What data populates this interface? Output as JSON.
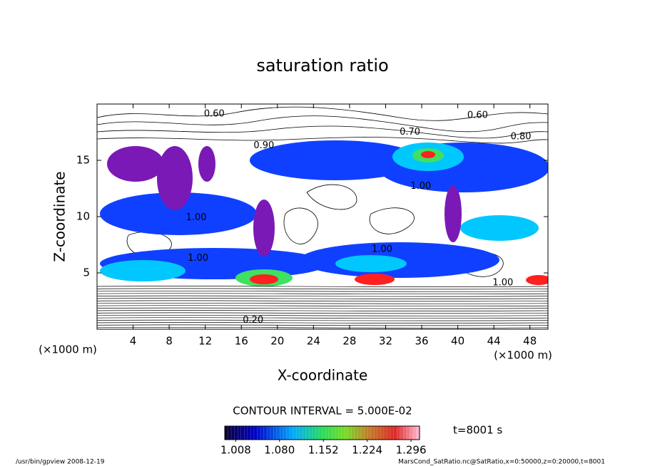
{
  "chart_data": {
    "type": "contour",
    "title": "saturation ratio",
    "x_label": "X-coordinate",
    "y_label": "Z-coordinate",
    "x_unit": "(×1000 m)",
    "y_unit": "(×1000 m)",
    "xlim": [
      0,
      50
    ],
    "ylim": [
      0,
      20
    ],
    "xticks": [
      4,
      8,
      12,
      16,
      20,
      24,
      28,
      32,
      36,
      40,
      44,
      48
    ],
    "yticks": [
      5,
      10,
      15
    ],
    "contour_labels": [
      {
        "text": "0.60",
        "x": 13,
        "y": 19.1
      },
      {
        "text": "0.60",
        "x": 42.2,
        "y": 19
      },
      {
        "text": "0.70",
        "x": 34.7,
        "y": 17.5
      },
      {
        "text": "0.80",
        "x": 47,
        "y": 17.1
      },
      {
        "text": "0.90",
        "x": 18.5,
        "y": 16.3
      },
      {
        "text": "1.00",
        "x": 35.9,
        "y": 12.7
      },
      {
        "text": "1.00",
        "x": 11,
        "y": 9.9
      },
      {
        "text": "1.00",
        "x": 11.2,
        "y": 6.3
      },
      {
        "text": "1.00",
        "x": 31.6,
        "y": 7.1
      },
      {
        "text": "1.00",
        "x": 45,
        "y": 4.1
      },
      {
        "text": "0.20",
        "x": 17.3,
        "y": 0.8
      }
    ],
    "contour_interval": "CONTOUR INTERVAL = 5.000E-02",
    "time_label": "t=8001 s",
    "colorbar": {
      "lim": [
        0.99,
        1.31
      ],
      "ticks": [
        1.008,
        {
          "value": 1.08,
          "label": "1.080"
        },
        1.152,
        1.224,
        1.296
      ]
    },
    "footer_left": "/usr/bin/gpview   2008-12-19",
    "footer_right": "MarsCond_SatRatio.nc@SatRatio,x=0:50000,z=0:20000,t=8001"
  }
}
